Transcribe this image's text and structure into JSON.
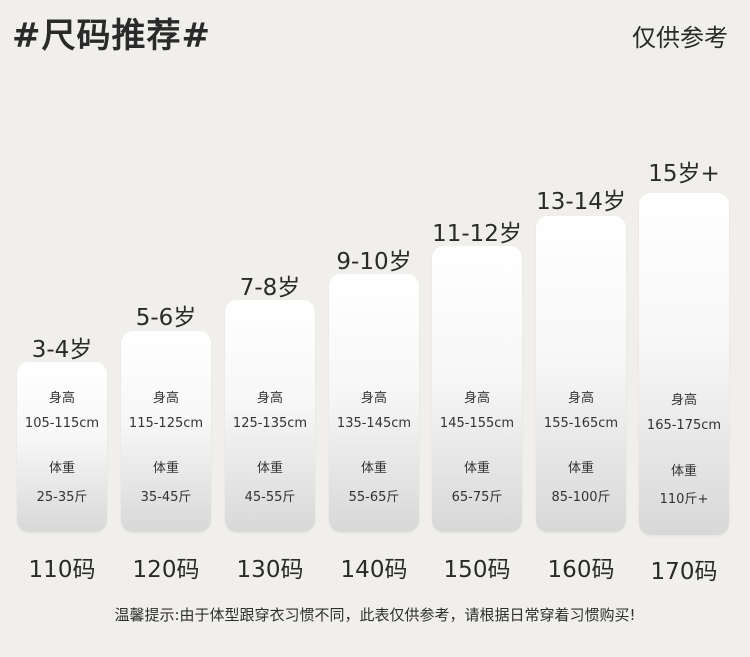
{
  "header": {
    "title": "#尺码推荐#",
    "note": "仅供参考"
  },
  "sizes": [
    {
      "age": "3-4岁",
      "height_label": "身高",
      "height": "105-115cm",
      "weight_label": "体重",
      "weight": "25-35斤",
      "size": "110码"
    },
    {
      "age": "5-6岁",
      "height_label": "身高",
      "height": "115-125cm",
      "weight_label": "体重",
      "weight": "35-45斤",
      "size": "120码"
    },
    {
      "age": "7-8岁",
      "height_label": "身高",
      "height": "125-135cm",
      "weight_label": "体重",
      "weight": "45-55斤",
      "size": "130码"
    },
    {
      "age": "9-10岁",
      "height_label": "身高",
      "height": "135-145cm",
      "weight_label": "体重",
      "weight": "55-65斤",
      "size": "140码"
    },
    {
      "age": "11-12岁",
      "height_label": "身高",
      "height": "145-155cm",
      "weight_label": "体重",
      "weight": "65-75斤",
      "size": "150码"
    },
    {
      "age": "13-14岁",
      "height_label": "身高",
      "height": "155-165cm",
      "weight_label": "体重",
      "weight": "85-100斤",
      "size": "160码"
    },
    {
      "age": "15岁+",
      "height_label": "身高",
      "height": "165-175cm",
      "weight_label": "体重",
      "weight": "110斤+",
      "size": "170码"
    }
  ],
  "footer": {
    "tip": "温馨提示:由于体型跟穿衣习惯不同，此表仅供参考，请根据日常穿着习惯购买!"
  }
}
